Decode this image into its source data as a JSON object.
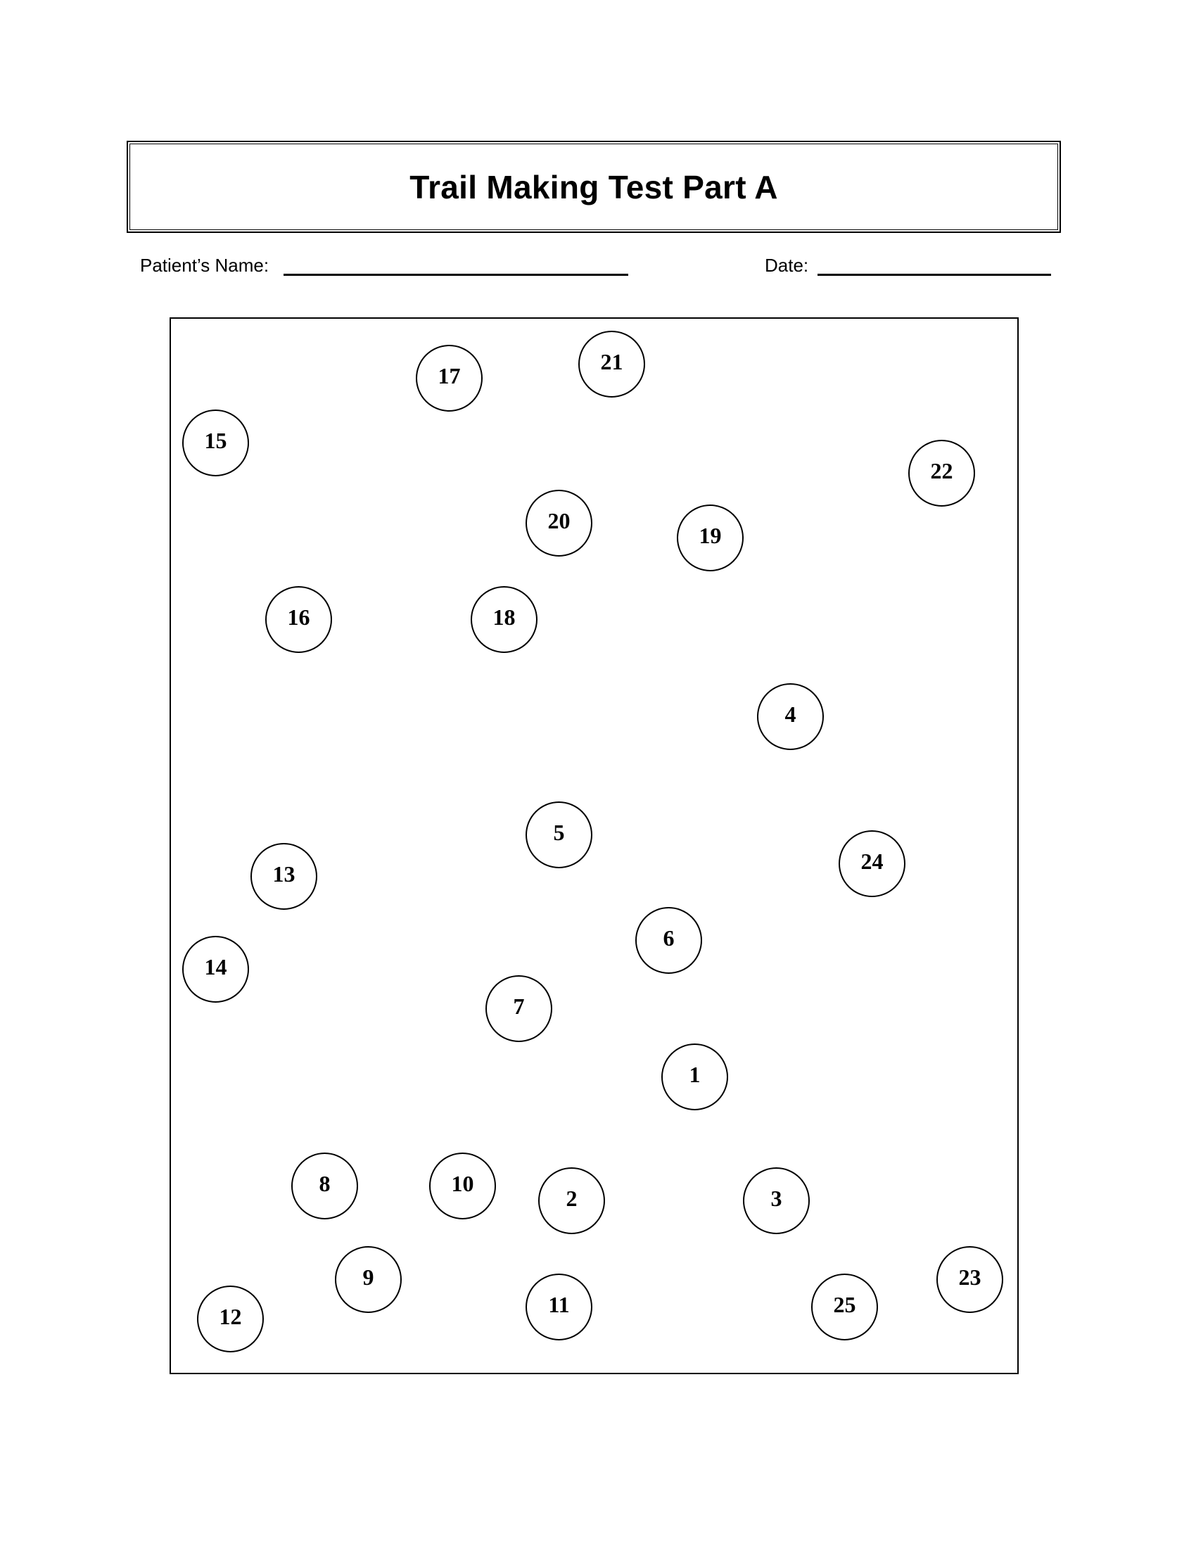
{
  "header": {
    "title": "Trail Making Test Part A"
  },
  "form": {
    "name_label": "Patient’s Name:",
    "date_label": "Date:"
  },
  "circles": [
    "1",
    "2",
    "3",
    "4",
    "5",
    "6",
    "7",
    "8",
    "9",
    "10",
    "11",
    "12",
    "13",
    "14",
    "15",
    "16",
    "17",
    "18",
    "19",
    "20",
    "21",
    "22",
    "23",
    "24",
    "25"
  ]
}
